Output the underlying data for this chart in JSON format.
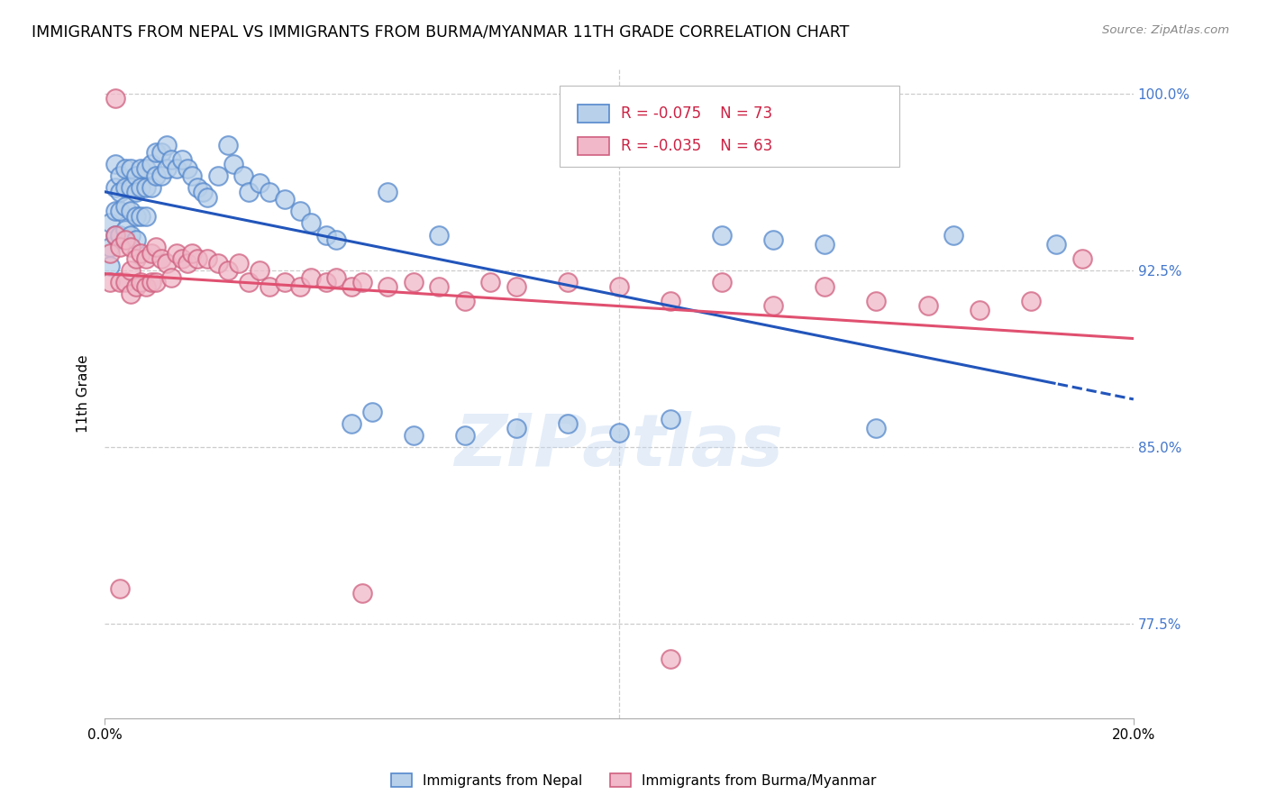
{
  "title": "IMMIGRANTS FROM NEPAL VS IMMIGRANTS FROM BURMA/MYANMAR 11TH GRADE CORRELATION CHART",
  "source": "Source: ZipAtlas.com",
  "ylabel": "11th Grade",
  "xlim": [
    0.0,
    0.2
  ],
  "ylim": [
    0.735,
    1.01
  ],
  "yticks": [
    0.775,
    0.85,
    0.925,
    1.0
  ],
  "ytick_labels": [
    "77.5%",
    "85.0%",
    "92.5%",
    "100.0%"
  ],
  "nepal_color": "#b8d0ea",
  "nepal_edge": "#5588cc",
  "burma_color": "#f0b8c8",
  "burma_edge": "#d06080",
  "nepal_line_color": "#2255bb",
  "burma_line_color": "#e05070",
  "legend_R_nepal": "R = -0.075",
  "legend_N_nepal": "N = 73",
  "legend_R_burma": "R = -0.035",
  "legend_N_burma": "N = 63",
  "watermark": "ZIPatlas",
  "nepal_x": [
    0.001,
    0.001,
    0.001,
    0.002,
    0.002,
    0.002,
    0.002,
    0.003,
    0.003,
    0.003,
    0.003,
    0.004,
    0.004,
    0.004,
    0.004,
    0.005,
    0.005,
    0.005,
    0.005,
    0.006,
    0.006,
    0.006,
    0.006,
    0.007,
    0.007,
    0.007,
    0.008,
    0.008,
    0.008,
    0.009,
    0.009,
    0.01,
    0.01,
    0.011,
    0.011,
    0.012,
    0.012,
    0.013,
    0.014,
    0.015,
    0.016,
    0.017,
    0.018,
    0.019,
    0.02,
    0.022,
    0.024,
    0.025,
    0.027,
    0.028,
    0.03,
    0.032,
    0.035,
    0.038,
    0.04,
    0.043,
    0.045,
    0.048,
    0.052,
    0.055,
    0.06,
    0.065,
    0.07,
    0.08,
    0.09,
    0.1,
    0.11,
    0.12,
    0.13,
    0.14,
    0.15,
    0.165,
    0.185
  ],
  "nepal_y": [
    0.945,
    0.935,
    0.927,
    0.97,
    0.96,
    0.95,
    0.94,
    0.965,
    0.958,
    0.95,
    0.94,
    0.968,
    0.96,
    0.952,
    0.942,
    0.968,
    0.96,
    0.95,
    0.94,
    0.965,
    0.958,
    0.948,
    0.938,
    0.968,
    0.96,
    0.948,
    0.968,
    0.96,
    0.948,
    0.97,
    0.96,
    0.975,
    0.965,
    0.975,
    0.965,
    0.978,
    0.968,
    0.972,
    0.968,
    0.972,
    0.968,
    0.965,
    0.96,
    0.958,
    0.956,
    0.965,
    0.978,
    0.97,
    0.965,
    0.958,
    0.962,
    0.958,
    0.955,
    0.95,
    0.945,
    0.94,
    0.938,
    0.86,
    0.865,
    0.958,
    0.855,
    0.94,
    0.855,
    0.858,
    0.86,
    0.856,
    0.862,
    0.94,
    0.938,
    0.936,
    0.858,
    0.94,
    0.936
  ],
  "burma_x": [
    0.001,
    0.001,
    0.002,
    0.002,
    0.003,
    0.003,
    0.004,
    0.004,
    0.005,
    0.005,
    0.005,
    0.006,
    0.006,
    0.007,
    0.007,
    0.008,
    0.008,
    0.009,
    0.009,
    0.01,
    0.01,
    0.011,
    0.012,
    0.013,
    0.014,
    0.015,
    0.016,
    0.017,
    0.018,
    0.02,
    0.022,
    0.024,
    0.026,
    0.028,
    0.03,
    0.032,
    0.035,
    0.038,
    0.04,
    0.043,
    0.045,
    0.048,
    0.05,
    0.055,
    0.06,
    0.065,
    0.07,
    0.075,
    0.08,
    0.09,
    0.1,
    0.11,
    0.12,
    0.13,
    0.14,
    0.15,
    0.16,
    0.17,
    0.18,
    0.19,
    0.003,
    0.05,
    0.11
  ],
  "burma_y": [
    0.932,
    0.92,
    0.94,
    0.998,
    0.935,
    0.92,
    0.938,
    0.92,
    0.935,
    0.925,
    0.915,
    0.93,
    0.918,
    0.932,
    0.92,
    0.93,
    0.918,
    0.932,
    0.92,
    0.935,
    0.92,
    0.93,
    0.928,
    0.922,
    0.932,
    0.93,
    0.928,
    0.932,
    0.93,
    0.93,
    0.928,
    0.925,
    0.928,
    0.92,
    0.925,
    0.918,
    0.92,
    0.918,
    0.922,
    0.92,
    0.922,
    0.918,
    0.92,
    0.918,
    0.92,
    0.918,
    0.912,
    0.92,
    0.918,
    0.92,
    0.918,
    0.912,
    0.92,
    0.91,
    0.918,
    0.912,
    0.91,
    0.908,
    0.912,
    0.93,
    0.79,
    0.788,
    0.76
  ]
}
